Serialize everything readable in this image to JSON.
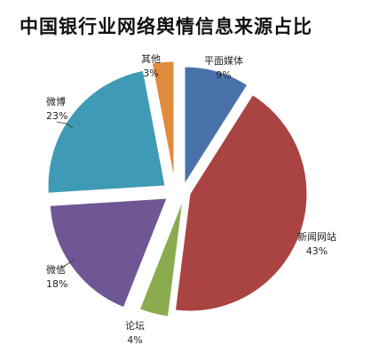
{
  "chart_data": {
    "type": "pie",
    "title": "中国银行业网络舆情信息来源占比",
    "exploded": true,
    "slices": [
      {
        "name": "平面媒体",
        "value": 9,
        "label": "9%",
        "color": "#4a72aa"
      },
      {
        "name": "新闻网站",
        "value": 43,
        "label": "43%",
        "color": "#a94442"
      },
      {
        "name": "论坛",
        "value": 4,
        "label": "4%",
        "color": "#8aac4f"
      },
      {
        "name": "微信",
        "value": 18,
        "label": "18%",
        "color": "#6e5794"
      },
      {
        "name": "微博",
        "value": 23,
        "label": "23%",
        "color": "#3f9bb5"
      },
      {
        "name": "其他",
        "value": 3,
        "label": "3%",
        "color": "#e08a3c"
      }
    ]
  }
}
